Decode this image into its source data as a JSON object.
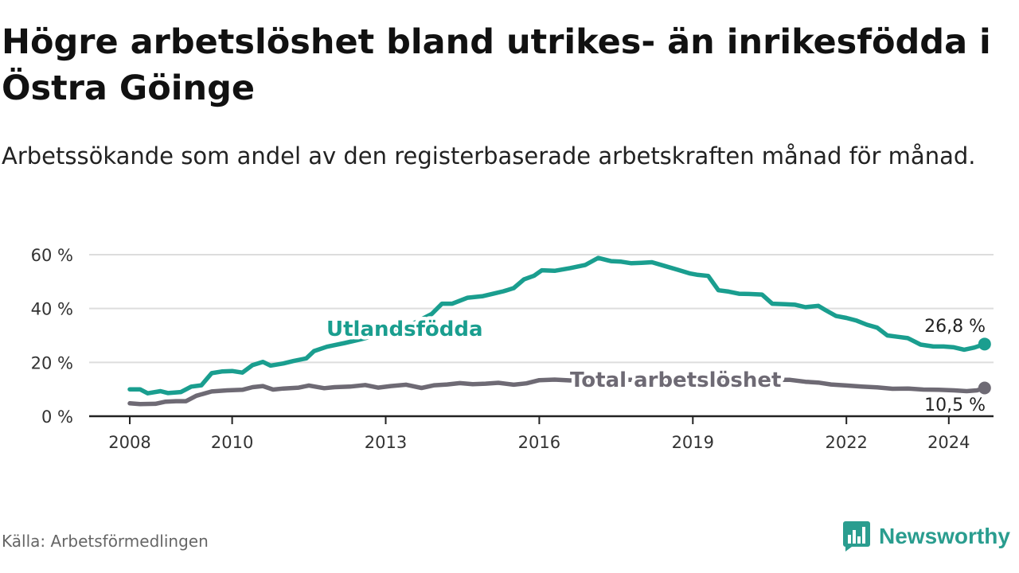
{
  "title": "Högre arbetslöshet bland utrikes- än inrikesfödda i Östra Göinge",
  "subtitle": "Arbetssökande som andel av den registerbaserade arbetskraften månad för månad.",
  "source": "Källa: Arbetsförmedlingen",
  "brand": "Newsworthy",
  "colors": {
    "foreign": "#1a9e8f",
    "total": "#6e6a74",
    "grid": "#dddddd",
    "axis": "#222222",
    "brand": "#2a9d8f"
  },
  "chart_data": {
    "type": "line",
    "title": "Högre arbetslöshet bland utrikes- än inrikesfödda i Östra Göinge",
    "ylabel": "",
    "xlabel": "",
    "ylim": [
      0,
      60
    ],
    "yticks": [
      0,
      20,
      40,
      60
    ],
    "ytick_labels": [
      "0 %",
      "20 %",
      "40 %",
      "60 %"
    ],
    "xlim": [
      2008.0,
      2024.4
    ],
    "xticks": [
      2008,
      2010,
      2013,
      2016,
      2019,
      2022,
      2024
    ],
    "xtick_labels": [
      "2008",
      "2010",
      "2013",
      "2016",
      "2019",
      "2022",
      "2024"
    ],
    "series": [
      {
        "name": "Utlandsfödda",
        "end_label": "26,8 %",
        "points": [
          [
            2008.0,
            10
          ],
          [
            2008.2,
            10
          ],
          [
            2008.35,
            8.5
          ],
          [
            2008.6,
            9.3
          ],
          [
            2008.75,
            8.6
          ],
          [
            2009.0,
            9.0
          ],
          [
            2009.2,
            11
          ],
          [
            2009.4,
            11.5
          ],
          [
            2009.6,
            16
          ],
          [
            2009.8,
            16.6
          ],
          [
            2010.0,
            16.8
          ],
          [
            2010.2,
            16.2
          ],
          [
            2010.4,
            19
          ],
          [
            2010.6,
            20.2
          ],
          [
            2010.75,
            18.8
          ],
          [
            2011.0,
            19.6
          ],
          [
            2011.2,
            20.5
          ],
          [
            2011.45,
            21.5
          ],
          [
            2011.6,
            24.2
          ],
          [
            2011.85,
            25.8
          ],
          [
            2012.0,
            26.4
          ],
          [
            2012.2,
            27.2
          ],
          [
            2012.5,
            28.5
          ],
          [
            2012.8,
            30
          ],
          [
            2013.2,
            32
          ],
          [
            2013.6,
            35
          ],
          [
            2013.9,
            38
          ],
          [
            2014.1,
            41.8
          ],
          [
            2014.3,
            41.8
          ],
          [
            2014.6,
            44
          ],
          [
            2014.9,
            44.6
          ],
          [
            2015.1,
            45.5
          ],
          [
            2015.3,
            46.4
          ],
          [
            2015.5,
            47.6
          ],
          [
            2015.7,
            50.8
          ],
          [
            2015.9,
            52.2
          ],
          [
            2016.05,
            54.2
          ],
          [
            2016.3,
            54
          ],
          [
            2016.6,
            55
          ],
          [
            2016.9,
            56.2
          ],
          [
            2017.15,
            58.8
          ],
          [
            2017.4,
            57.6
          ],
          [
            2017.6,
            57.4
          ],
          [
            2017.8,
            56.8
          ],
          [
            2018.0,
            57
          ],
          [
            2018.2,
            57.2
          ],
          [
            2018.45,
            55.8
          ],
          [
            2018.7,
            54.4
          ],
          [
            2018.95,
            53
          ],
          [
            2019.1,
            52.5
          ],
          [
            2019.3,
            52.1
          ],
          [
            2019.5,
            46.8
          ],
          [
            2019.7,
            46.3
          ],
          [
            2019.9,
            45.5
          ],
          [
            2020.1,
            45.4
          ],
          [
            2020.35,
            45.2
          ],
          [
            2020.55,
            41.8
          ],
          [
            2020.8,
            41.6
          ],
          [
            2021.0,
            41.4
          ],
          [
            2021.2,
            40.5
          ],
          [
            2021.45,
            41
          ],
          [
            2021.6,
            39.3
          ],
          [
            2021.8,
            37.2
          ],
          [
            2022.0,
            36.5
          ],
          [
            2022.2,
            35.5
          ],
          [
            2022.4,
            34
          ],
          [
            2022.6,
            32.9
          ],
          [
            2022.8,
            30
          ],
          [
            2023.0,
            29.5
          ],
          [
            2023.2,
            29
          ],
          [
            2023.45,
            26.6
          ],
          [
            2023.7,
            25.9
          ],
          [
            2023.9,
            25.9
          ],
          [
            2024.1,
            25.6
          ],
          [
            2024.3,
            24.7
          ],
          [
            2024.5,
            25.5
          ],
          [
            2024.7,
            26.8
          ]
        ]
      },
      {
        "name": "Total arbetslöshet",
        "end_label": "10,5 %",
        "points": [
          [
            2008.0,
            4.8
          ],
          [
            2008.2,
            4.5
          ],
          [
            2008.5,
            4.6
          ],
          [
            2008.7,
            5.4
          ],
          [
            2008.9,
            5.6
          ],
          [
            2009.1,
            5.6
          ],
          [
            2009.3,
            7.6
          ],
          [
            2009.6,
            9.2
          ],
          [
            2009.9,
            9.6
          ],
          [
            2010.2,
            9.8
          ],
          [
            2010.4,
            10.8
          ],
          [
            2010.6,
            11.2
          ],
          [
            2010.8,
            9.9
          ],
          [
            2011.0,
            10.3
          ],
          [
            2011.3,
            10.6
          ],
          [
            2011.5,
            11.4
          ],
          [
            2011.8,
            10.4
          ],
          [
            2012.0,
            10.8
          ],
          [
            2012.3,
            11
          ],
          [
            2012.6,
            11.6
          ],
          [
            2012.85,
            10.6
          ],
          [
            2013.1,
            11.2
          ],
          [
            2013.4,
            11.7
          ],
          [
            2013.7,
            10.5
          ],
          [
            2013.95,
            11.5
          ],
          [
            2014.2,
            11.8
          ],
          [
            2014.45,
            12.3
          ],
          [
            2014.7,
            11.9
          ],
          [
            2014.95,
            12.1
          ],
          [
            2015.2,
            12.4
          ],
          [
            2015.5,
            11.7
          ],
          [
            2015.75,
            12.2
          ],
          [
            2016.0,
            13.4
          ],
          [
            2016.3,
            13.6
          ],
          [
            2016.6,
            13.3
          ],
          [
            2016.8,
            13.5
          ],
          [
            2020.9,
            13.5
          ],
          [
            2021.2,
            12.8
          ],
          [
            2021.45,
            12.5
          ],
          [
            2021.7,
            11.8
          ],
          [
            2022.0,
            11.4
          ],
          [
            2022.3,
            11
          ],
          [
            2022.6,
            10.7
          ],
          [
            2022.9,
            10.2
          ],
          [
            2023.2,
            10.3
          ],
          [
            2023.5,
            9.9
          ],
          [
            2023.8,
            9.8
          ],
          [
            2024.1,
            9.6
          ],
          [
            2024.35,
            9.3
          ],
          [
            2024.55,
            9.6
          ],
          [
            2024.7,
            10.5
          ]
        ]
      }
    ]
  }
}
